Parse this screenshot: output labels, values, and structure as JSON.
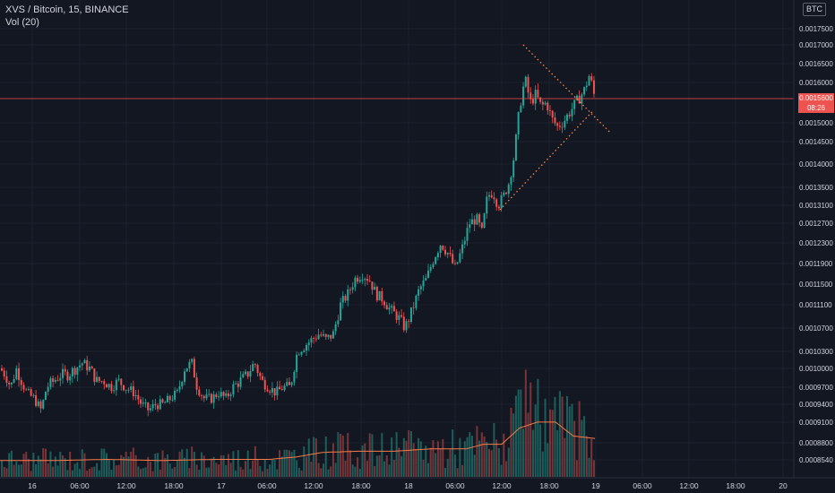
{
  "legend": {
    "symbol_line": "XVS / Bitcoin, 15, BINANCE",
    "volume_line": "Vol (20)"
  },
  "currency_button": "BTC",
  "last_price": {
    "value": "0.0015600",
    "countdown": "08:26",
    "color": "#ef5350"
  },
  "colors": {
    "up": "#26a69a",
    "down": "#ef5350",
    "volume_ma": "#f57c48",
    "trendline": "#f5874e",
    "background": "#131722",
    "grid": "#1e222d",
    "axis_text": "#d1d4dc"
  },
  "chart_data": {
    "type": "candlestick",
    "price_axis_ticks": [
      "0.0017500",
      "0.0017000",
      "0.0016500",
      "0.0016000",
      "0.0015600",
      "0.0015000",
      "0.0014500",
      "0.0014000",
      "0.0013500",
      "0.0013100",
      "0.0012700",
      "0.0012300",
      "0.0011900",
      "0.0011500",
      "0.0011100",
      "0.0010700",
      "0.0010300",
      "0.0010000",
      "0.0009700",
      "0.0009400",
      "0.0009100",
      "0.0008800",
      "0.0008540"
    ],
    "time_axis_ticks": [
      "16",
      "06:00",
      "12:00",
      "18:00",
      "17",
      "06:00",
      "12:00",
      "18:00",
      "18",
      "06:00",
      "12:00",
      "18:00",
      "19",
      "06:00",
      "12:00",
      "18:00",
      "20"
    ],
    "price_path": [
      [
        0,
        0.001
      ],
      [
        6,
        0.00099
      ],
      [
        12,
        0.00097
      ],
      [
        18,
        0.001
      ],
      [
        24,
        0.00098
      ],
      [
        30,
        0.00096
      ],
      [
        38,
        0.00095
      ],
      [
        46,
        0.00093
      ],
      [
        52,
        0.00097
      ],
      [
        60,
        0.00098
      ],
      [
        68,
        0.00099
      ],
      [
        76,
        0.00099
      ],
      [
        84,
        0.001
      ],
      [
        92,
        0.00101
      ],
      [
        100,
        0.001
      ],
      [
        108,
        0.00098
      ],
      [
        116,
        0.00098
      ],
      [
        124,
        0.00097
      ],
      [
        132,
        0.00098
      ],
      [
        140,
        0.00097
      ],
      [
        150,
        0.00096
      ],
      [
        158,
        0.00094
      ],
      [
        166,
        0.00093
      ],
      [
        174,
        0.00094
      ],
      [
        182,
        0.00094
      ],
      [
        190,
        0.00095
      ],
      [
        198,
        0.00096
      ],
      [
        206,
        0.001
      ],
      [
        214,
        0.00101
      ],
      [
        220,
        0.00097
      ],
      [
        228,
        0.00095
      ],
      [
        236,
        0.00095
      ],
      [
        244,
        0.00096
      ],
      [
        252,
        0.00095
      ],
      [
        260,
        0.00097
      ],
      [
        268,
        0.00098
      ],
      [
        276,
        0.00099
      ],
      [
        284,
        0.00101
      ],
      [
        292,
        0.00098
      ],
      [
        300,
        0.00097
      ],
      [
        308,
        0.00096
      ],
      [
        316,
        0.00097
      ],
      [
        324,
        0.00097
      ],
      [
        332,
        0.00103
      ],
      [
        340,
        0.00104
      ],
      [
        348,
        0.00105
      ],
      [
        356,
        0.00106
      ],
      [
        364,
        0.00105
      ],
      [
        372,
        0.00106
      ],
      [
        380,
        0.00111
      ],
      [
        388,
        0.00113
      ],
      [
        396,
        0.00116
      ],
      [
        404,
        0.00117
      ],
      [
        412,
        0.00116
      ],
      [
        420,
        0.00113
      ],
      [
        428,
        0.00112
      ],
      [
        436,
        0.0011
      ],
      [
        444,
        0.00109
      ],
      [
        452,
        0.00107
      ],
      [
        460,
        0.0011
      ],
      [
        468,
        0.00114
      ],
      [
        476,
        0.00116
      ],
      [
        484,
        0.0012
      ],
      [
        492,
        0.00123
      ],
      [
        500,
        0.00121
      ],
      [
        508,
        0.00118
      ],
      [
        516,
        0.00122
      ],
      [
        524,
        0.00127
      ],
      [
        532,
        0.00128
      ],
      [
        538,
        0.00125
      ],
      [
        544,
        0.00133
      ],
      [
        550,
        0.00134
      ],
      [
        556,
        0.00131
      ],
      [
        562,
        0.00133
      ],
      [
        568,
        0.00136
      ],
      [
        574,
        0.00142
      ],
      [
        580,
        0.00154
      ],
      [
        586,
        0.00161
      ],
      [
        592,
        0.00155
      ],
      [
        598,
        0.00157
      ],
      [
        604,
        0.00154
      ],
      [
        610,
        0.00155
      ],
      [
        616,
        0.00151
      ],
      [
        622,
        0.00149
      ],
      [
        628,
        0.0015
      ],
      [
        634,
        0.00152
      ],
      [
        640,
        0.00154
      ],
      [
        646,
        0.00156
      ],
      [
        652,
        0.00158
      ],
      [
        658,
        0.00162
      ],
      [
        664,
        0.00156
      ]
    ],
    "volume_ma_path": [
      [
        0,
        0.14
      ],
      [
        60,
        0.14
      ],
      [
        120,
        0.15
      ],
      [
        180,
        0.14
      ],
      [
        240,
        0.15
      ],
      [
        300,
        0.15
      ],
      [
        330,
        0.17
      ],
      [
        360,
        0.21
      ],
      [
        400,
        0.22
      ],
      [
        440,
        0.22
      ],
      [
        480,
        0.24
      ],
      [
        520,
        0.24
      ],
      [
        540,
        0.28
      ],
      [
        560,
        0.28
      ],
      [
        580,
        0.42
      ],
      [
        600,
        0.47
      ],
      [
        620,
        0.47
      ],
      [
        640,
        0.35
      ],
      [
        664,
        0.33
      ]
    ],
    "volume_spikes": [
      [
        580,
        0.75
      ],
      [
        586,
        0.92
      ],
      [
        590,
        0.55
      ],
      [
        598,
        0.62
      ],
      [
        604,
        0.45
      ],
      [
        614,
        0.58
      ],
      [
        622,
        0.4
      ],
      [
        640,
        0.48
      ],
      [
        646,
        0.65
      ],
      [
        656,
        0.35
      ]
    ],
    "trendlines": [
      {
        "from": [
          584,
          0.0017
        ],
        "to": [
          682,
          0.001472
        ]
      },
      {
        "from": [
          558,
          0.0013
        ],
        "to": [
          662,
          0.00153
        ]
      }
    ]
  }
}
